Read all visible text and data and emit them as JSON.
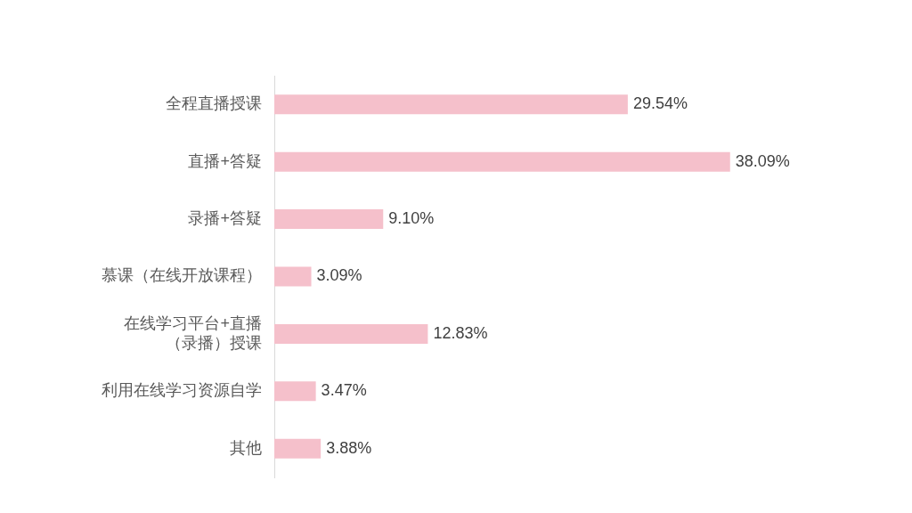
{
  "chart_data": {
    "type": "bar",
    "orientation": "horizontal",
    "categories": [
      "全程直播授课",
      "直播+答疑",
      "录播+答疑",
      "慕课（在线开放课程）",
      "在线学习平台+直播（录播）授课",
      "利用在线学习资源自学",
      "其他"
    ],
    "values": [
      29.54,
      38.09,
      9.1,
      3.09,
      12.83,
      3.47,
      3.88
    ],
    "value_labels": [
      "29.54%",
      "38.09%",
      "9.10%",
      "3.09%",
      "12.83%",
      "3.47%",
      "3.88%"
    ],
    "color": "#f5c0cb"
  }
}
